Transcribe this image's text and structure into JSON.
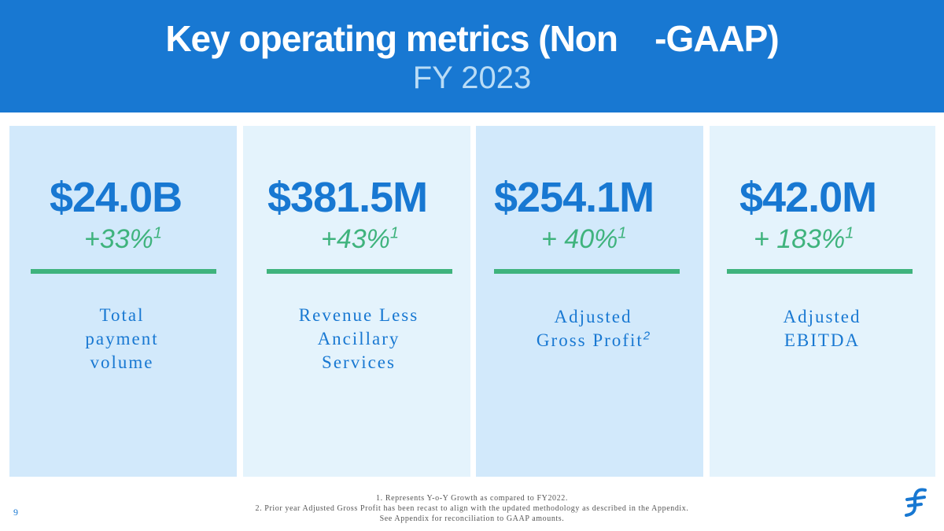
{
  "header": {
    "title": "Key operating metrics (Non    -GAAP)",
    "subtitle": "FY 2023"
  },
  "metrics": [
    {
      "value": "$24.0B",
      "growth": "+33%",
      "growth_note": "1",
      "label_lines": [
        "Total",
        "payment",
        "volume"
      ]
    },
    {
      "value": "$381.5M",
      "growth": "+43%",
      "growth_note": "1",
      "label_lines": [
        "Revenue Less",
        "Ancillary",
        "Services"
      ]
    },
    {
      "value": "$254.1M",
      "growth": "+ 40%",
      "growth_note": "1",
      "label_lines": [
        "Adjusted",
        "Gross Profit"
      ],
      "label_note": "2"
    },
    {
      "value": "$42.0M",
      "growth": "+ 183%",
      "growth_note": "1",
      "label_lines": [
        "Adjusted",
        "EBITDA"
      ]
    }
  ],
  "footnotes": [
    "1. Represents Y-o-Y Growth as compared to FY2022.",
    "2. Prior year Adjusted Gross Profit has been recast to align with the updated methodology as described in the Appendix.",
    "See Appendix for reconciliation to GAAP amounts."
  ],
  "page_number": "9",
  "logo": {
    "icon": "brand-logo-icon",
    "color": "#1878d2"
  },
  "colors": {
    "header": "#1878d2",
    "value": "#1878d2",
    "growth": "#3fb37d",
    "panel_dark": "#d2e9fb",
    "panel_light": "#e4f3fc"
  }
}
